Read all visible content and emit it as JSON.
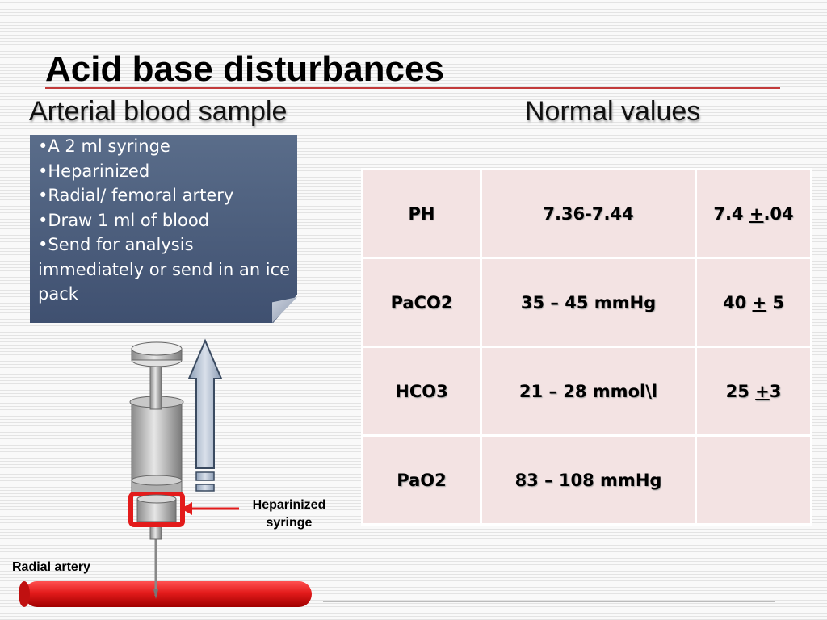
{
  "title": "Acid base disturbances",
  "left_heading": "Arterial blood sample",
  "right_heading": "Normal values",
  "note_items": [
    "•A 2 ml syringe",
    "•Heparinized",
    "•Radial/ femoral artery",
    "•Draw 1 ml of blood",
    "•Send for analysis immediately or send in an ice pack"
  ],
  "table": {
    "rows": [
      {
        "param": "PH",
        "range": "7.36-7.44",
        "mean_pre": "7.4 ",
        "pm": "+",
        "mean_post": ".04"
      },
      {
        "param": "PaCO2",
        "range": "35 – 45 mmHg",
        "mean_pre": "40 ",
        "pm": "+",
        "mean_post": " 5"
      },
      {
        "param": "HCO3",
        "range": "21 – 28 mmol\\l",
        "mean_pre": "25 ",
        "pm": "+",
        "mean_post": "3"
      },
      {
        "param": "PaO2",
        "range": "83 – 108 mmHg",
        "mean_pre": "",
        "pm": "",
        "mean_post": ""
      }
    ]
  },
  "labels": {
    "syringe_line1": "Heparinized",
    "syringe_line2": "syringe",
    "artery": "Radial artery"
  },
  "icons": {
    "syringe": "syringe-icon",
    "up_arrow": "up-arrow-icon",
    "pointer_arrow": "left-arrow-icon",
    "artery": "artery-tube-icon"
  },
  "colors": {
    "title_rule": "#c23a3a",
    "note_fill": "#4a5c7b",
    "table_cell": "#f3e3e3",
    "artery": "#e31b1b",
    "heparin_band": "#e31b1b"
  }
}
